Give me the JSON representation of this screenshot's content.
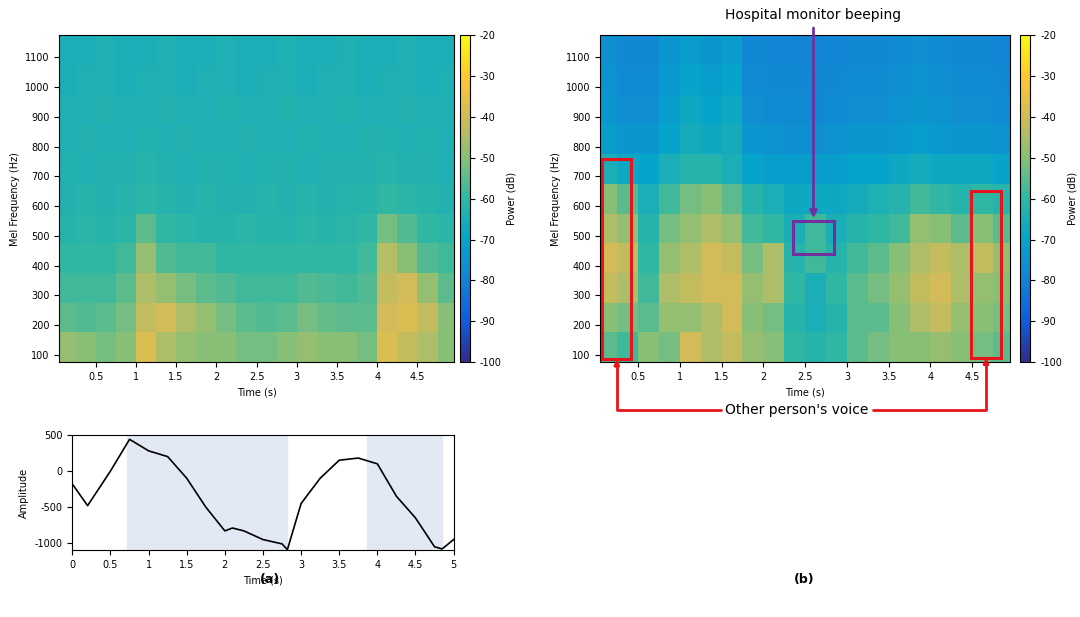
{
  "chart_data": [
    {
      "type": "heatmap",
      "panel": "(a)",
      "x_label": "Time (s)",
      "y_label": "Mel Frequency (Hz)",
      "colorbar_label": "Power (dB)",
      "xlim": [
        0.05,
        4.95
      ],
      "ylim": [
        75,
        1175
      ],
      "xticks": [
        0.5,
        1,
        1.5,
        2,
        2.5,
        3,
        3.5,
        4,
        4.5
      ],
      "yticks": [
        100,
        200,
        300,
        400,
        500,
        600,
        700,
        800,
        900,
        1000,
        1100
      ],
      "color_range": [
        -100,
        -20
      ],
      "color_ticks": [
        -20,
        -30,
        -40,
        -50,
        -60,
        -70,
        -80,
        -90,
        -100
      ],
      "x_edges": [
        0,
        0.25,
        0.5,
        0.75,
        1,
        1.25,
        1.5,
        1.75,
        2,
        2.25,
        2.5,
        2.75,
        3,
        3.25,
        3.5,
        3.75,
        4,
        4.25,
        4.5,
        4.75,
        5
      ],
      "y_edges": [
        75,
        175,
        275,
        375,
        475,
        575,
        675,
        775,
        875,
        975,
        1075,
        1175
      ],
      "cells": [
        [
          -48,
          -50,
          -52,
          -50,
          -38,
          -45,
          -48,
          -50,
          -50,
          -52,
          -52,
          -50,
          -48,
          -50,
          -50,
          -52,
          -38,
          -42,
          -45,
          -50
        ],
        [
          -55,
          -56,
          -55,
          -52,
          -42,
          -40,
          -45,
          -48,
          -52,
          -55,
          -56,
          -55,
          -52,
          -54,
          -55,
          -55,
          -40,
          -38,
          -42,
          -50
        ],
        [
          -58,
          -58,
          -58,
          -55,
          -45,
          -48,
          -52,
          -55,
          -56,
          -58,
          -58,
          -58,
          -56,
          -57,
          -58,
          -56,
          -42,
          -40,
          -48,
          -55
        ],
        [
          -60,
          -60,
          -60,
          -58,
          -48,
          -56,
          -58,
          -58,
          -60,
          -60,
          -60,
          -60,
          -60,
          -60,
          -60,
          -58,
          -44,
          -50,
          -56,
          -58
        ],
        [
          -62,
          -61,
          -62,
          -61,
          -55,
          -60,
          -61,
          -62,
          -62,
          -61,
          -62,
          -62,
          -61,
          -62,
          -61,
          -60,
          -52,
          -56,
          -60,
          -61
        ],
        [
          -63,
          -62,
          -63,
          -62,
          -61,
          -62,
          -63,
          -62,
          -63,
          -63,
          -62,
          -63,
          -62,
          -63,
          -62,
          -62,
          -60,
          -61,
          -62,
          -63
        ],
        [
          -63,
          -64,
          -63,
          -63,
          -62,
          -63,
          -64,
          -63,
          -63,
          -64,
          -63,
          -63,
          -64,
          -63,
          -63,
          -63,
          -62,
          -63,
          -63,
          -64
        ],
        [
          -64,
          -63,
          -64,
          -64,
          -63,
          -64,
          -63,
          -64,
          -64,
          -63,
          -64,
          -64,
          -63,
          -64,
          -64,
          -63,
          -63,
          -64,
          -63,
          -64
        ],
        [
          -64,
          -64,
          -63,
          -64,
          -64,
          -63,
          -64,
          -64,
          -63,
          -64,
          -64,
          -63,
          -64,
          -64,
          -63,
          -64,
          -64,
          -63,
          -64,
          -64
        ],
        [
          -65,
          -64,
          -64,
          -65,
          -64,
          -64,
          -65,
          -64,
          -64,
          -65,
          -64,
          -64,
          -65,
          -64,
          -64,
          -65,
          -64,
          -64,
          -65,
          -64
        ],
        [
          -65,
          -65,
          -64,
          -65,
          -65,
          -64,
          -65,
          -65,
          -64,
          -65,
          -65,
          -64,
          -65,
          -65,
          -64,
          -65,
          -65,
          -64,
          -65,
          -65
        ]
      ]
    },
    {
      "type": "line",
      "panel": "(a)",
      "x_label": "Time (s)",
      "y_label": "Amplitude",
      "color": "#000000",
      "xlim": [
        0,
        5
      ],
      "ylim": [
        -1100,
        500
      ],
      "xticks": [
        0,
        0.5,
        1,
        1.5,
        2,
        2.5,
        3,
        3.5,
        4,
        4.5,
        5
      ],
      "yticks": [
        -1000,
        -500,
        0,
        500
      ],
      "highlight": [
        [
          0.72,
          2.82
        ],
        [
          3.87,
          4.85
        ]
      ],
      "x": [
        0,
        0.2,
        0.5,
        0.75,
        1.0,
        1.25,
        1.5,
        1.75,
        2.0,
        2.1,
        2.25,
        2.5,
        2.75,
        2.82,
        3.0,
        3.25,
        3.5,
        3.75,
        4.0,
        4.25,
        4.5,
        4.75,
        4.85,
        5.0
      ],
      "values": [
        -180,
        -480,
        0,
        440,
        280,
        200,
        -100,
        -500,
        -830,
        -790,
        -830,
        -950,
        -1010,
        -1090,
        -450,
        -100,
        150,
        180,
        100,
        -350,
        -650,
        -1050,
        -1080,
        -950
      ]
    },
    {
      "type": "heatmap",
      "panel": "(b)",
      "x_label": "Time (s)",
      "y_label": "Mel Frequency (Hz)",
      "colorbar_label": "Power (dB)",
      "xlim": [
        0.05,
        4.95
      ],
      "ylim": [
        75,
        1175
      ],
      "xticks": [
        0.5,
        1,
        1.5,
        2,
        2.5,
        3,
        3.5,
        4,
        4.5
      ],
      "yticks": [
        100,
        200,
        300,
        400,
        500,
        600,
        700,
        800,
        900,
        1000,
        1100
      ],
      "color_range": [
        -100,
        -20
      ],
      "color_ticks": [
        -20,
        -30,
        -40,
        -50,
        -60,
        -70,
        -80,
        -90,
        -100
      ],
      "x_edges": [
        0,
        0.25,
        0.5,
        0.75,
        1,
        1.25,
        1.5,
        1.75,
        2,
        2.25,
        2.5,
        2.75,
        3,
        3.25,
        3.5,
        3.75,
        4,
        4.25,
        4.5,
        4.75,
        5
      ],
      "y_edges": [
        75,
        175,
        275,
        375,
        475,
        575,
        675,
        775,
        875,
        975,
        1075,
        1175
      ],
      "cells": [
        [
          -55,
          -58,
          -50,
          -52,
          -40,
          -45,
          -42,
          -48,
          -50,
          -60,
          -62,
          -60,
          -55,
          -52,
          -50,
          -50,
          -48,
          -50,
          -52,
          -55
        ],
        [
          -50,
          -52,
          -55,
          -48,
          -48,
          -45,
          -40,
          -50,
          -52,
          -62,
          -65,
          -62,
          -55,
          -55,
          -50,
          -45,
          -42,
          -48,
          -50,
          -52
        ],
        [
          -42,
          -45,
          -58,
          -45,
          -42,
          -40,
          -40,
          -48,
          -45,
          -60,
          -65,
          -60,
          -55,
          -52,
          -48,
          -42,
          -40,
          -45,
          -48,
          -50
        ],
        [
          -40,
          -42,
          -60,
          -48,
          -45,
          -40,
          -42,
          -52,
          -45,
          -62,
          -58,
          -62,
          -58,
          -55,
          -50,
          -45,
          -42,
          -45,
          -42,
          -48
        ],
        [
          -45,
          -48,
          -62,
          -52,
          -48,
          -45,
          -48,
          -58,
          -60,
          -65,
          -58,
          -65,
          -62,
          -60,
          -58,
          -48,
          -50,
          -55,
          -50,
          -55
        ],
        [
          -50,
          -55,
          -65,
          -58,
          -52,
          -50,
          -55,
          -62,
          -65,
          -68,
          -68,
          -68,
          -66,
          -64,
          -62,
          -58,
          -60,
          -62,
          -60,
          -62
        ],
        [
          -65,
          -68,
          -70,
          -65,
          -62,
          -62,
          -65,
          -70,
          -72,
          -72,
          -72,
          -72,
          -70,
          -70,
          -68,
          -66,
          -68,
          -68,
          -68,
          -70
        ],
        [
          -72,
          -74,
          -74,
          -70,
          -66,
          -68,
          -66,
          -74,
          -75,
          -76,
          -76,
          -75,
          -74,
          -74,
          -73,
          -72,
          -73,
          -74,
          -74,
          -75
        ],
        [
          -74,
          -76,
          -76,
          -72,
          -68,
          -70,
          -68,
          -76,
          -77,
          -77,
          -78,
          -77,
          -76,
          -76,
          -75,
          -74,
          -75,
          -76,
          -76,
          -77
        ],
        [
          -75,
          -77,
          -77,
          -73,
          -70,
          -72,
          -70,
          -77,
          -78,
          -78,
          -78,
          -78,
          -77,
          -77,
          -76,
          -75,
          -76,
          -77,
          -77,
          -78
        ],
        [
          -76,
          -78,
          -78,
          -74,
          -72,
          -74,
          -72,
          -78,
          -79,
          -79,
          -79,
          -79,
          -78,
          -78,
          -77,
          -76,
          -77,
          -78,
          -78,
          -79
        ]
      ],
      "annotations": [
        {
          "text": "Hospital monitor beeping",
          "color": "#7030a0",
          "regions": [
            {
              "x": [
                2.35,
                2.85
              ],
              "y": [
                440,
                550
              ]
            }
          ]
        },
        {
          "text": "Other person's voice",
          "color": "#e8141c",
          "regions": [
            {
              "x": [
                0.07,
                0.42
              ],
              "y": [
                85,
                760
              ]
            },
            {
              "x": [
                4.48,
                4.85
              ],
              "y": [
                90,
                650
              ]
            }
          ]
        }
      ]
    }
  ]
}
